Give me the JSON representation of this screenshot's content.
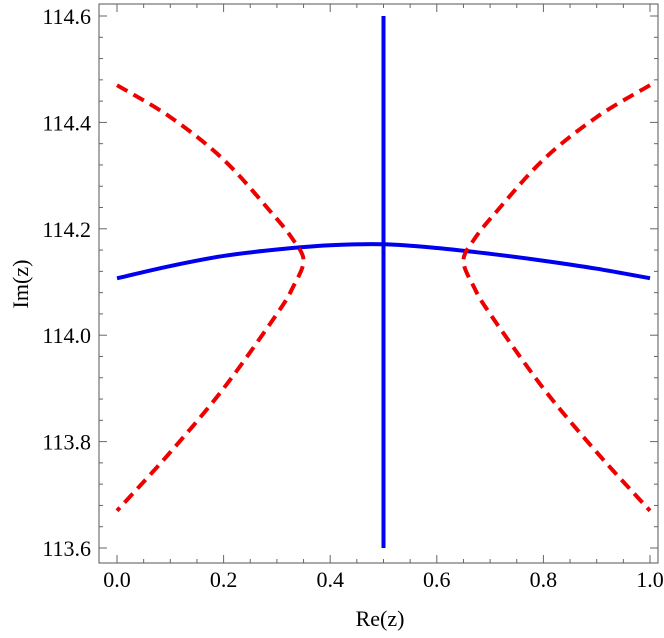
{
  "chart_data": {
    "type": "line",
    "xlabel": "Re(z)",
    "ylabel": "Im(z)",
    "xlim": [
      0.0,
      1.0
    ],
    "ylim": [
      113.6,
      114.6
    ],
    "x_ticks": [
      "0.0",
      "0.2",
      "0.4",
      "0.6",
      "0.8",
      "1.0"
    ],
    "y_ticks": [
      "113.6",
      "113.8",
      "114.0",
      "114.2",
      "114.4",
      "114.6"
    ],
    "grid": false,
    "series": [
      {
        "style": "solid",
        "color": "#0000ee",
        "points": [
          [
            0.0,
            114.107
          ],
          [
            0.1,
            114.13
          ],
          [
            0.2,
            114.149
          ],
          [
            0.3,
            114.161
          ],
          [
            0.4,
            114.169
          ],
          [
            0.5,
            114.171
          ],
          [
            0.6,
            114.164
          ],
          [
            0.7,
            114.153
          ],
          [
            0.8,
            114.14
          ],
          [
            0.9,
            114.125
          ],
          [
            1.0,
            114.107
          ]
        ]
      },
      {
        "style": "solid",
        "color": "#0000ee",
        "points": [
          [
            0.5,
            113.6
          ],
          [
            0.5,
            114.6
          ]
        ]
      },
      {
        "style": "dashed",
        "color": "#ee0000",
        "points": [
          [
            0.0,
            114.47
          ],
          [
            0.1,
            114.41
          ],
          [
            0.2,
            114.33
          ],
          [
            0.29,
            114.23
          ],
          [
            0.33,
            114.18
          ],
          [
            0.35,
            114.14
          ],
          [
            0.33,
            114.09
          ],
          [
            0.3,
            114.04
          ],
          [
            0.2,
            113.9
          ],
          [
            0.1,
            113.78
          ],
          [
            0.0,
            113.67
          ]
        ]
      },
      {
        "style": "dashed",
        "color": "#ee0000",
        "points": [
          [
            1.0,
            114.47
          ],
          [
            0.9,
            114.41
          ],
          [
            0.8,
            114.33
          ],
          [
            0.71,
            114.23
          ],
          [
            0.67,
            114.18
          ],
          [
            0.65,
            114.14
          ],
          [
            0.67,
            114.09
          ],
          [
            0.7,
            114.04
          ],
          [
            0.8,
            113.9
          ],
          [
            0.9,
            113.78
          ],
          [
            1.0,
            113.67
          ]
        ]
      }
    ]
  }
}
